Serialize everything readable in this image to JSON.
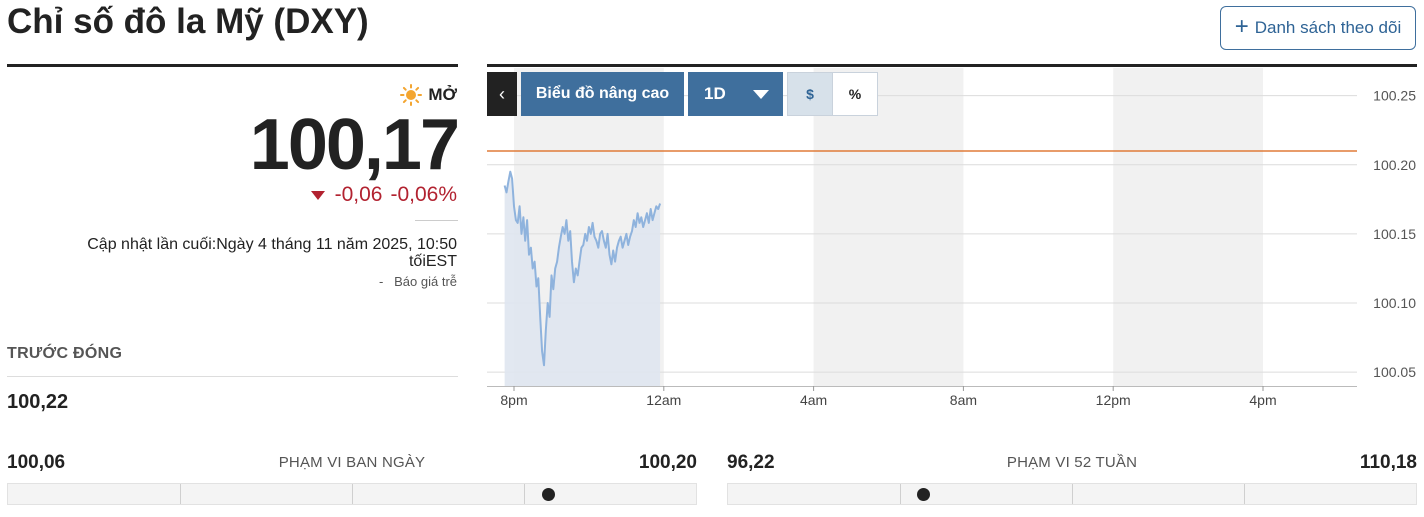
{
  "title": "Chỉ số đô la Mỹ (DXY)",
  "watchlist_button": {
    "icon": "plus-icon",
    "label": "Danh sách theo dõi"
  },
  "quote": {
    "market_state_icon": "sun-icon",
    "market_state": "MỞ",
    "price": "100,17",
    "change": "-0,06",
    "change_percent": "-0,06%",
    "direction": "down",
    "updated": "Cập nhật lần cuối:Ngày 4 tháng 11 năm 2025, 10:50 tốiEST",
    "delay_prefix": "-",
    "delay_note": "Báo giá trễ"
  },
  "previous_close": {
    "label": "TRƯỚC ĐÓNG",
    "value": "100,22"
  },
  "chart_toolbar": {
    "collapse_icon": "chevron-left-icon",
    "advanced_label": "Biểu đồ nâng cao",
    "range_value": "1D",
    "currency_label": "$",
    "percent_label": "%"
  },
  "day_range": {
    "low": "100,06",
    "label": "PHẠM VI BAN NGÀY",
    "high": "100,20",
    "position": 0.786
  },
  "week52_range": {
    "low": "96,22",
    "label": "PHẠM VI 52 TUẦN",
    "high": "110,18",
    "position": 0.284
  },
  "colors": {
    "down": "#b22230",
    "accent": "#3f6f9d",
    "line": "#8fb3dd",
    "area": "#dfe6ef",
    "prev_close_line": "#e07b39",
    "session_shade": "#f1f1f1"
  },
  "chart_data": {
    "type": "area",
    "xlabels": [
      "8pm",
      "12am",
      "4am",
      "8am",
      "12pm",
      "4pm"
    ],
    "yticks": [
      "100.05",
      "100.10",
      "100.15",
      "100.20",
      "100.25"
    ],
    "ylim": [
      100.04,
      100.27
    ],
    "x_range_hours": [
      19.8,
      41.4
    ],
    "reference_line": 100.21,
    "series": [
      {
        "x": [
          19.75,
          19.8,
          19.85,
          19.9,
          19.95,
          20.0,
          20.05,
          20.1,
          20.15,
          20.2,
          20.25,
          20.3,
          20.35,
          20.4,
          20.45,
          20.5,
          20.55,
          20.6,
          20.65,
          20.7,
          20.75,
          20.8,
          20.85,
          20.9,
          20.95,
          21.0,
          21.05,
          21.1,
          21.15,
          21.2,
          21.25,
          21.3,
          21.35,
          21.4,
          21.45,
          21.5,
          21.55,
          21.6,
          21.65,
          21.7,
          21.75,
          21.8,
          21.85,
          21.9,
          21.95,
          22.0,
          22.05,
          22.1,
          22.15,
          22.2,
          22.25,
          22.3,
          22.35,
          22.4,
          22.45,
          22.5,
          22.55,
          22.6,
          22.65,
          22.7,
          22.75,
          22.8,
          22.85,
          22.9,
          22.95,
          23.0,
          23.05,
          23.1,
          23.15,
          23.2,
          23.25,
          23.3,
          23.35,
          23.4,
          23.45,
          23.5,
          23.55,
          23.6,
          23.65,
          23.7,
          23.75,
          23.8,
          23.85,
          23.9
        ],
        "y": [
          100.185,
          100.18,
          100.188,
          100.195,
          100.19,
          100.17,
          100.16,
          100.158,
          100.17,
          100.15,
          100.162,
          100.145,
          100.16,
          100.135,
          100.14,
          100.125,
          100.13,
          100.112,
          100.118,
          100.09,
          100.065,
          100.055,
          100.08,
          100.1,
          100.09,
          100.12,
          100.11,
          100.125,
          100.13,
          100.14,
          100.148,
          100.155,
          100.15,
          100.16,
          100.145,
          100.152,
          100.13,
          100.115,
          100.125,
          100.12,
          100.13,
          100.14,
          100.142,
          100.15,
          100.145,
          100.155,
          100.15,
          100.158,
          100.148,
          100.145,
          100.14,
          100.15,
          100.152,
          100.145,
          100.14,
          100.15,
          100.135,
          100.128,
          100.138,
          100.13,
          100.14,
          100.145,
          100.148,
          100.14,
          100.145,
          100.15,
          100.142,
          100.148,
          100.152,
          100.16,
          100.155,
          100.165,
          100.158,
          100.162,
          100.155,
          100.16,
          100.165,
          100.158,
          100.168,
          100.16,
          100.165,
          100.17,
          100.168,
          100.172
        ]
      }
    ]
  }
}
